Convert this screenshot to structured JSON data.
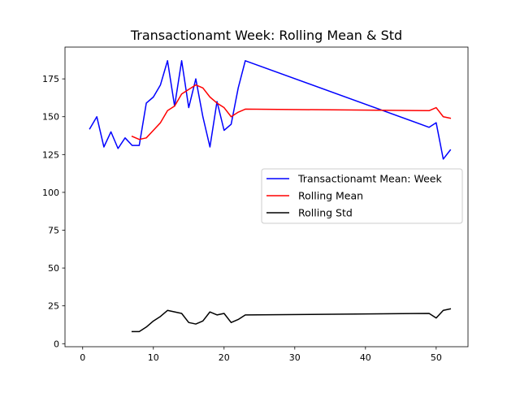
{
  "chart_data": {
    "type": "line",
    "title": "Transactionamt Week: Rolling Mean & Std",
    "xlabel": "",
    "ylabel": "",
    "xlim": [
      -2.5,
      54.5
    ],
    "ylim": [
      -2,
      196
    ],
    "xticks": [
      0,
      10,
      20,
      30,
      40,
      50
    ],
    "yticks": [
      0,
      25,
      50,
      75,
      100,
      125,
      150,
      175
    ],
    "grid": false,
    "legend": {
      "position": "center-right",
      "entries": [
        {
          "name": "Transactionamt Mean: Week",
          "color": "#0000ff"
        },
        {
          "name": "Rolling Mean",
          "color": "#ff0000"
        },
        {
          "name": "Rolling Std",
          "color": "#000000"
        }
      ]
    },
    "series": [
      {
        "name": "Transactionamt Mean: Week",
        "color": "#0000ff",
        "x": [
          1,
          2,
          3,
          4,
          5,
          6,
          7,
          8,
          9,
          10,
          11,
          12,
          13,
          14,
          15,
          16,
          17,
          18,
          19,
          20,
          21,
          22,
          23,
          49,
          50,
          51,
          52
        ],
        "y": [
          142,
          150,
          130,
          140,
          129,
          136,
          131,
          131,
          159,
          163,
          171,
          187,
          157,
          187,
          156,
          175,
          150,
          130,
          160,
          141,
          145,
          169,
          187,
          143,
          146,
          122,
          128
        ]
      },
      {
        "name": "Rolling Mean",
        "color": "#ff0000",
        "x": [
          7,
          8,
          9,
          10,
          11,
          12,
          13,
          14,
          15,
          16,
          17,
          18,
          19,
          20,
          21,
          22,
          23,
          49,
          50,
          51,
          52
        ],
        "y": [
          137,
          135,
          136,
          141,
          146,
          154,
          157,
          165,
          168,
          171,
          169,
          163,
          159,
          156,
          150,
          153,
          155,
          154,
          156,
          150,
          149
        ]
      },
      {
        "name": "Rolling Std",
        "color": "#000000",
        "x": [
          7,
          8,
          9,
          10,
          11,
          12,
          13,
          14,
          15,
          16,
          17,
          18,
          19,
          20,
          21,
          22,
          23,
          49,
          50,
          51,
          52
        ],
        "y": [
          8,
          8,
          11,
          15,
          18,
          22,
          21,
          20,
          14,
          13,
          15,
          21,
          19,
          20,
          14,
          16,
          19,
          20,
          17,
          22,
          23
        ]
      }
    ]
  }
}
